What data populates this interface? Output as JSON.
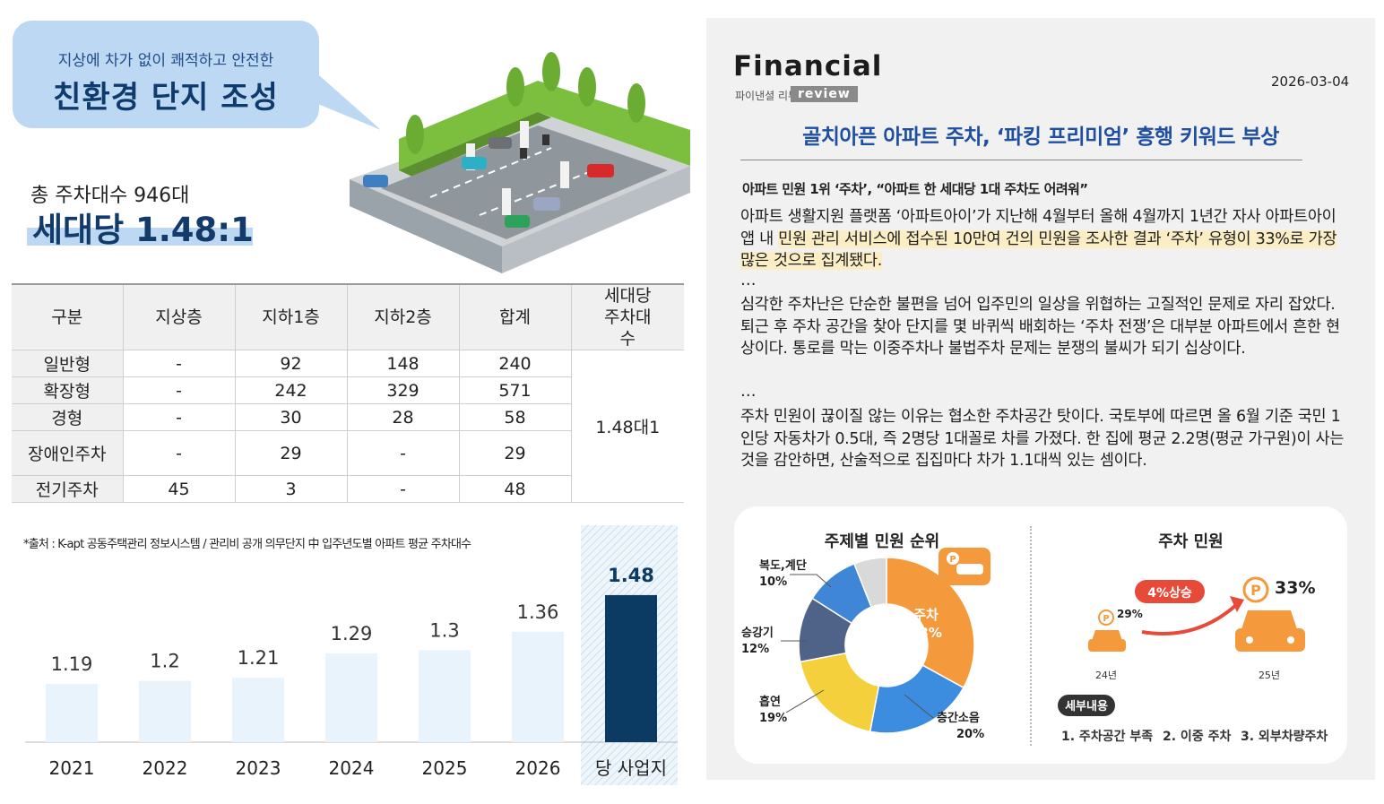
{
  "left": {
    "bubble_sub": "지상에 차가 없이 쾌적하고 안전한",
    "bubble_main": "친환경 단지 조성",
    "total_label": "총 주차대수 946대",
    "ratio": "세대당 1.48:1",
    "table": {
      "headers": [
        "구분",
        "지상층",
        "지하1층",
        "지하2층",
        "합계",
        "세대당 주차대수"
      ],
      "rows": [
        {
          "type": "일반형",
          "ground": "-",
          "b1": "92",
          "b2": "148",
          "total": "240"
        },
        {
          "type": "확장형",
          "ground": "-",
          "b1": "242",
          "b2": "329",
          "total": "571"
        },
        {
          "type": "경형",
          "ground": "-",
          "b1": "30",
          "b2": "28",
          "total": "58"
        },
        {
          "type": "장애인주차",
          "ground": "-",
          "b1": "29",
          "b2": "-",
          "total": "29"
        },
        {
          "type": "전기주차",
          "ground": "45",
          "b1": "3",
          "b2": "-",
          "total": "48"
        }
      ],
      "per_household": "1.48대1"
    },
    "source_note": "*출처 : K-apt 공동주택관리 정보시스템 / 관리비 공개 의무단지 中 입주년도별 아파트 평균 주차대수",
    "colors": {
      "bubble": "#bcd8f3",
      "bar_light": "#e8f3fc",
      "bar_dark": "#0b3a63"
    }
  },
  "chart_data": {
    "type": "bar",
    "categories": [
      "2021",
      "2022",
      "2023",
      "2024",
      "2025",
      "2026",
      "당 사업지"
    ],
    "values": [
      1.19,
      1.2,
      1.21,
      1.29,
      1.3,
      1.36,
      1.48
    ],
    "value_labels": [
      "1.19",
      "1.2",
      "1.21",
      "1.29",
      "1.3",
      "1.36",
      "1.48"
    ],
    "highlight_index": 6,
    "title": "",
    "xlabel": "",
    "ylabel": "",
    "ylim": [
      1.0,
      1.55
    ],
    "grid": false
  },
  "article": {
    "logo_main": "Financial",
    "logo_kr": "파이낸셜 리뷰",
    "logo_review": "review",
    "date": "2026-03-04",
    "headline": "골치아픈 아파트 주차, ‘파킹 프리미엄’ 흥행 키워드 부상",
    "subhead": "아파트 민원 1위 ‘주차’, “아파트 한 세대당 1대 주차도 어려워”",
    "p1_a": "아파트 생활지원 플랫폼 ‘아파트아이’가 지난해 4월부터 올해 4월까지 1년간 자사 아파트아이 앱 내 ",
    "p1_hl": "민원 관리 서비스에 접수된 10만여 건의 민원을 조사한 결과 ‘주차’ 유형이 33%로 가장 많은 것으로 집계됐다.",
    "dots": "…",
    "p2": "심각한 주차난은 단순한 불편을 넘어 입주민의 일상을 위협하는 고질적인 문제로 자리 잡았다. 퇴근 후 주차 공간을 찾아 단지를 몇 바퀴씩 배회하는 ‘주차 전쟁’은 대부분 아파트에서 흔한 현상이다. 통로를 막는 이중주차나 불법주차 문제는 분쟁의 불씨가 되기 십상이다.",
    "p3": "주차 민원이 끊이질 않는 이유는 협소한 주차공간 탓이다. 국토부에 따르면 올 6월 기준 국민 1인당 자동차가 0.5대, 즉 2명당 1대꼴로 차를 가졌다. 한 집에 평균 2.2명(평균 가구원)이 사는 것을 감안하면, 산술적으로 집집마다 차가 1.1대씩 있는 셈이다."
  },
  "infographic": {
    "donut_title": "주제별 민원 순위",
    "donut": [
      {
        "label": "주차",
        "value": 33,
        "pct": "33%",
        "color": "#f59a3c"
      },
      {
        "label": "층간소음",
        "value": 20,
        "pct": "20%",
        "color": "#3c8cdf"
      },
      {
        "label": "흡연",
        "value": 19,
        "pct": "19%",
        "color": "#f4d03c"
      },
      {
        "label": "승강기",
        "value": 12,
        "pct": "12%",
        "color": "#4f6288"
      },
      {
        "label": "복도,계단",
        "value": 10,
        "pct": "10%",
        "color": "#3f86d6"
      },
      {
        "label": "",
        "value": 6,
        "pct": "",
        "color": "#d9d9d9"
      }
    ],
    "complaint_title": "주차 민원",
    "rise_label": "4%상승",
    "prev_pct": "29%",
    "prev_year": "24년",
    "curr_pct": "33%",
    "curr_year": "25년",
    "detail_badge": "세부내용",
    "details": [
      "1. 주차공간 부족",
      "2. 이중 주차",
      "3. 외부차량주차"
    ]
  }
}
